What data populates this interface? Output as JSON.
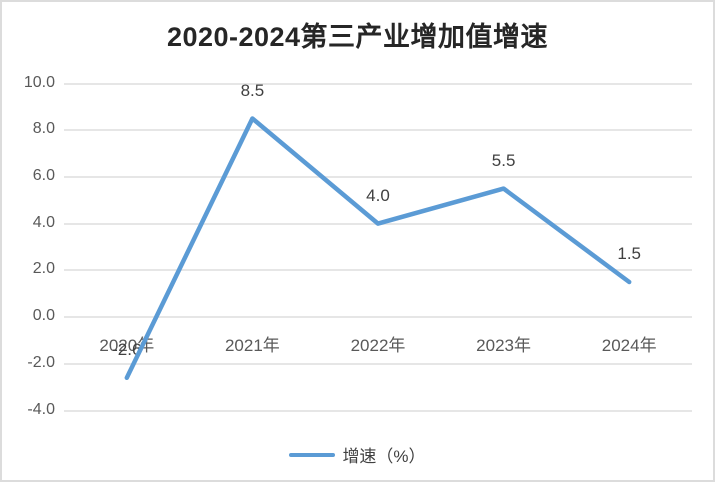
{
  "chart_data": {
    "type": "line",
    "title": "2020-2024第三产业增加值增速",
    "categories": [
      "2020年",
      "2021年",
      "2022年",
      "2023年",
      "2024年"
    ],
    "series": [
      {
        "name": "增速（%）",
        "values": [
          -2.6,
          8.5,
          4.0,
          5.5,
          1.5
        ],
        "color": "#5B9BD5"
      }
    ],
    "data_labels": [
      "-2.6",
      "8.5",
      "4.0",
      "5.5",
      "1.5"
    ],
    "y_ticks": [
      "10.0",
      "8.0",
      "6.0",
      "4.0",
      "2.0",
      "0.0",
      "-2.0",
      "-4.0"
    ],
    "y_tick_values": [
      10,
      8,
      6,
      4,
      2,
      0,
      -2,
      -4
    ],
    "ylim": [
      -4,
      10
    ],
    "grid": true,
    "legend_position": "bottom",
    "legend_label": "增速（%）"
  },
  "colors": {
    "line": "#5B9BD5",
    "gridline": "#E6E6E6",
    "title_text": "#262626",
    "axis_text": "#595959",
    "frame_border": "#DCDCDC",
    "background": "#FFFFFF"
  }
}
